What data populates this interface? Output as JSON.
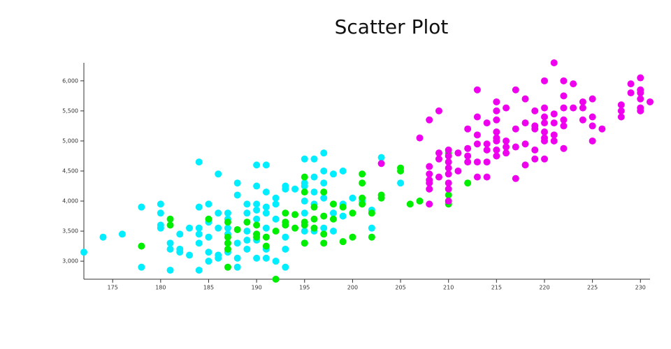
{
  "chart_data": {
    "type": "scatter",
    "title": "Scatter Plot",
    "xlim": [
      172,
      231
    ],
    "xticks": [
      175,
      180,
      185,
      190,
      195,
      200,
      205,
      210,
      215,
      220,
      225,
      230
    ],
    "ylim": [
      2700,
      6300
    ],
    "yticks": [
      {
        "value": 3000,
        "label": "3,000"
      },
      {
        "value": 3500,
        "label": "3,500"
      },
      {
        "value": 4000,
        "label": "4,000"
      },
      {
        "value": 4500,
        "label": "4,500"
      },
      {
        "value": 5000,
        "label": "5,000"
      },
      {
        "value": 5500,
        "label": "5,500"
      },
      {
        "value": 6000,
        "label": "6,000"
      }
    ],
    "series": [
      {
        "color": "#00eeff",
        "x": [
          172,
          174,
          176,
          178,
          178,
          180,
          180,
          180,
          180,
          181,
          181,
          181,
          182,
          182,
          182,
          183,
          183,
          184,
          184,
          184,
          184,
          184,
          184,
          185,
          185,
          185,
          185,
          185,
          186,
          186,
          186,
          186,
          186,
          187,
          187,
          187,
          187,
          187,
          188,
          188,
          188,
          188,
          188,
          189,
          189,
          189,
          189,
          189,
          190,
          190,
          190,
          190,
          190,
          190,
          190,
          190,
          191,
          191,
          191,
          191,
          191,
          191,
          191,
          192,
          192,
          192,
          192,
          193,
          193,
          193,
          193,
          193,
          194,
          195,
          195,
          195,
          195,
          195,
          195,
          195,
          196,
          196,
          196,
          196,
          196,
          197,
          197,
          197,
          197,
          197,
          198,
          198,
          198,
          199,
          199,
          199,
          200,
          201,
          202,
          202,
          203,
          205
        ],
        "values": [
          3150,
          3400,
          3450,
          3900,
          2900,
          3950,
          3800,
          3600,
          3550,
          3300,
          3200,
          2850,
          3200,
          3150,
          3450,
          3550,
          3100,
          4650,
          3900,
          3550,
          3450,
          3300,
          2850,
          3950,
          3650,
          3400,
          3150,
          3000,
          4450,
          3800,
          3550,
          3100,
          3050,
          3800,
          3700,
          3550,
          3450,
          3150,
          4300,
          4100,
          3300,
          3050,
          2900,
          3950,
          3800,
          3500,
          3350,
          3200,
          4600,
          4250,
          3950,
          3850,
          3700,
          3450,
          3350,
          3050,
          4600,
          4150,
          3900,
          3800,
          3550,
          3200,
          3050,
          4050,
          3950,
          3700,
          3000,
          4250,
          4200,
          3400,
          3200,
          2900,
          4200,
          4700,
          4300,
          4250,
          4000,
          3800,
          3500,
          3300,
          4700,
          4400,
          4150,
          3950,
          3500,
          4800,
          4500,
          4300,
          4050,
          3550,
          4450,
          3800,
          3500,
          4500,
          3950,
          3750,
          4050,
          4000,
          3850,
          3550,
          4725,
          4300
        ]
      },
      {
        "color": "#00ee00",
        "x": [
          178,
          181,
          181,
          185,
          187,
          187,
          187,
          187,
          187,
          188,
          189,
          190,
          190,
          190,
          191,
          191,
          192,
          192,
          193,
          193,
          193,
          194,
          194,
          195,
          195,
          195,
          195,
          195,
          196,
          196,
          196,
          197,
          197,
          197,
          197,
          198,
          198,
          199,
          199,
          200,
          200,
          201,
          201,
          201,
          201,
          202,
          202,
          203,
          203,
          205,
          205,
          206,
          207,
          210,
          210,
          210,
          212
        ],
        "values": [
          3250,
          3700,
          3600,
          3700,
          3650,
          3400,
          3300,
          3200,
          2900,
          3525,
          3650,
          3600,
          3450,
          3400,
          3400,
          3250,
          3500,
          2700,
          3800,
          3650,
          3600,
          3775,
          3550,
          4400,
          4150,
          3650,
          3600,
          3300,
          3900,
          3550,
          3700,
          4150,
          3750,
          3450,
          3300,
          3950,
          3700,
          3900,
          3325,
          3800,
          3400,
          4450,
          4300,
          4050,
          3950,
          3800,
          3400,
          4100,
          4050,
          4550,
          4500,
          3950,
          4000,
          4800,
          4100,
          3950,
          4300
        ]
      },
      {
        "color": "#ee00ee",
        "x": [
          203,
          207,
          208,
          208,
          208,
          208,
          208,
          208,
          208,
          209,
          209,
          209,
          209,
          210,
          210,
          210,
          210,
          210,
          210,
          210,
          210,
          211,
          211,
          212,
          212,
          212,
          212,
          213,
          213,
          213,
          213,
          213,
          213,
          214,
          214,
          214,
          214,
          214,
          215,
          215,
          215,
          215,
          215,
          215,
          215,
          215,
          216,
          216,
          216,
          216,
          217,
          217,
          217,
          217,
          218,
          218,
          218,
          218,
          219,
          219,
          219,
          219,
          219,
          220,
          220,
          220,
          220,
          220,
          220,
          220,
          220,
          221,
          221,
          221,
          221,
          221,
          222,
          222,
          222,
          222,
          222,
          222,
          223,
          223,
          224,
          224,
          224,
          225,
          225,
          225,
          225,
          226,
          228,
          228,
          228,
          229,
          229,
          230,
          230,
          230,
          230,
          230,
          230,
          231
        ],
        "values": [
          4625,
          5050,
          5350,
          4575,
          4450,
          4350,
          4300,
          4200,
          3950,
          5500,
          4800,
          4700,
          4400,
          4850,
          4750,
          4650,
          4550,
          4450,
          4300,
          4200,
          4000,
          4800,
          4500,
          5200,
          4875,
          4750,
          4650,
          5850,
          5400,
          5100,
          4950,
          4650,
          4400,
          5300,
          4950,
          4850,
          4650,
          4400,
          5650,
          5500,
          5350,
          5150,
          5050,
          5000,
          4850,
          4750,
          5550,
          5000,
          4900,
          4800,
          5850,
          5200,
          4900,
          4375,
          5700,
          5300,
          4950,
          4600,
          5500,
          5250,
          5200,
          4850,
          4700,
          6000,
          5550,
          5400,
          5300,
          5150,
          5050,
          5000,
          4700,
          6300,
          5450,
          5300,
          5100,
          5000,
          6000,
          5750,
          5550,
          5350,
          5250,
          4875,
          5950,
          5550,
          5650,
          5550,
          5350,
          5700,
          5400,
          5250,
          5000,
          5200,
          5600,
          5500,
          5400,
          5950,
          5800,
          6050,
          5850,
          5800,
          5700,
          5550,
          5500,
          5650
        ]
      }
    ]
  }
}
